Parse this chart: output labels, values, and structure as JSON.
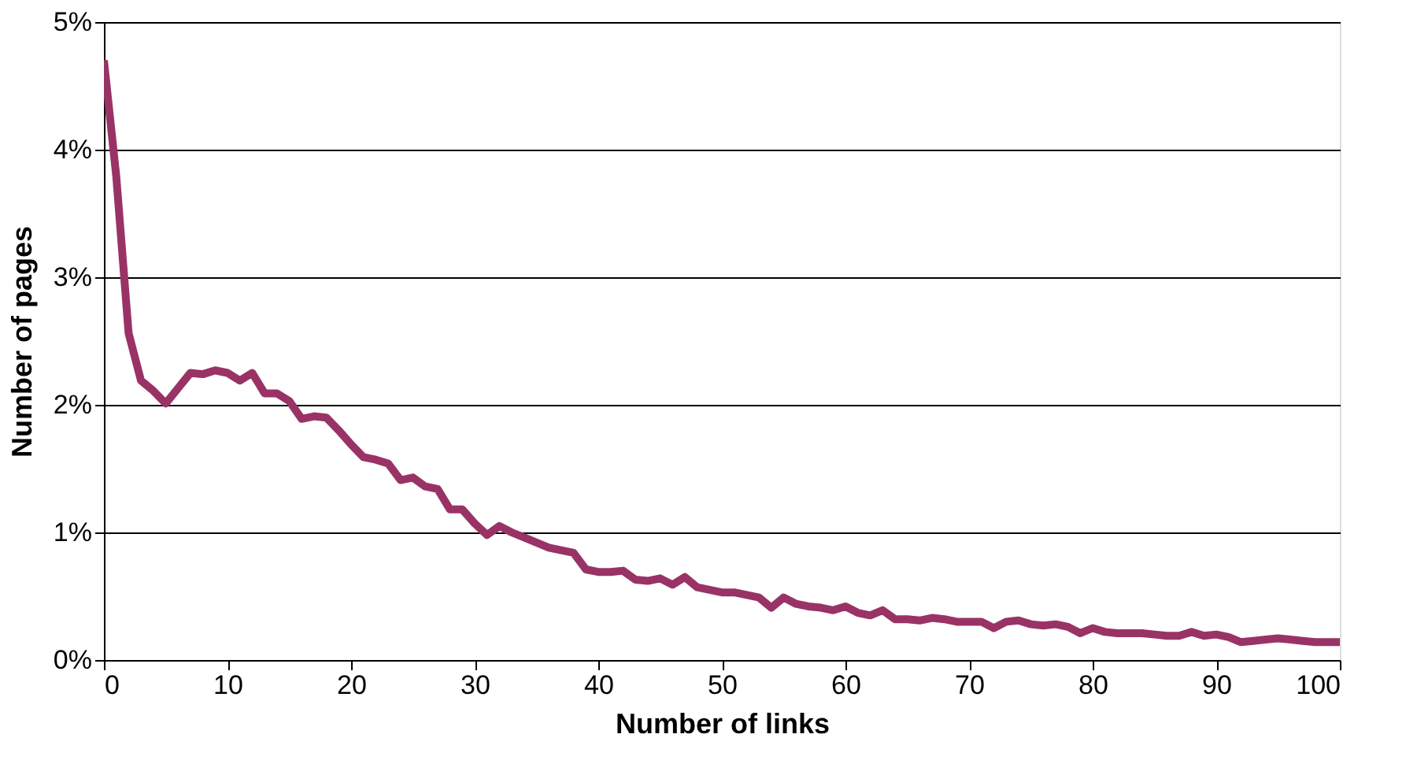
{
  "chart_data": {
    "type": "line",
    "xlabel": "Number of links",
    "ylabel": "Number of pages",
    "x": [
      0,
      1,
      2,
      3,
      4,
      5,
      6,
      7,
      8,
      9,
      10,
      11,
      12,
      13,
      14,
      15,
      16,
      17,
      18,
      19,
      20,
      21,
      22,
      23,
      24,
      25,
      26,
      27,
      28,
      29,
      30,
      31,
      32,
      33,
      34,
      35,
      36,
      37,
      38,
      39,
      40,
      41,
      42,
      43,
      44,
      45,
      46,
      47,
      48,
      49,
      50,
      51,
      52,
      53,
      54,
      55,
      56,
      57,
      58,
      59,
      60,
      61,
      62,
      63,
      64,
      65,
      66,
      67,
      68,
      69,
      70,
      71,
      72,
      73,
      74,
      75,
      76,
      77,
      78,
      79,
      80,
      81,
      82,
      83,
      84,
      85,
      86,
      87,
      88,
      89,
      90,
      91,
      92,
      93,
      94,
      95,
      96,
      97,
      98,
      99,
      100
    ],
    "series": [
      {
        "color": "#993366",
        "values": [
          4.7,
          3.79,
          2.56,
          2.19,
          2.11,
          2.01,
          2.13,
          2.25,
          2.24,
          2.27,
          2.25,
          2.19,
          2.25,
          2.09,
          2.09,
          2.03,
          1.89,
          1.91,
          1.9,
          1.8,
          1.69,
          1.59,
          1.57,
          1.54,
          1.41,
          1.43,
          1.36,
          1.34,
          1.18,
          1.18,
          1.07,
          0.98,
          1.05,
          1.0,
          0.96,
          0.92,
          0.88,
          0.86,
          0.84,
          0.71,
          0.69,
          0.69,
          0.7,
          0.63,
          0.62,
          0.64,
          0.59,
          0.65,
          0.57,
          0.55,
          0.53,
          0.53,
          0.51,
          0.49,
          0.41,
          0.49,
          0.44,
          0.42,
          0.41,
          0.39,
          0.42,
          0.37,
          0.35,
          0.39,
          0.32,
          0.32,
          0.31,
          0.33,
          0.32,
          0.3,
          0.3,
          0.3,
          0.25,
          0.3,
          0.31,
          0.28,
          0.27,
          0.28,
          0.26,
          0.21,
          0.25,
          0.22,
          0.21,
          0.21,
          0.21,
          0.2,
          0.19,
          0.19,
          0.22,
          0.19,
          0.2,
          0.18,
          0.14,
          0.15,
          0.16,
          0.17,
          0.16,
          0.15,
          0.14,
          0.14,
          0.14
        ]
      }
    ],
    "xlim": [
      0,
      100
    ],
    "xticks": [
      0,
      10,
      20,
      30,
      40,
      50,
      60,
      70,
      80,
      90,
      100
    ],
    "ylim": [
      0,
      5
    ],
    "yticks": [
      {
        "value": 0,
        "label": "0%"
      },
      {
        "value": 1,
        "label": "1%"
      },
      {
        "value": 2,
        "label": "2%"
      },
      {
        "value": 3,
        "label": "3%"
      },
      {
        "value": 4,
        "label": "4%"
      },
      {
        "value": 5,
        "label": "5%"
      }
    ],
    "grid": "y",
    "legend": false,
    "marker": "none",
    "line_style": "solid"
  }
}
